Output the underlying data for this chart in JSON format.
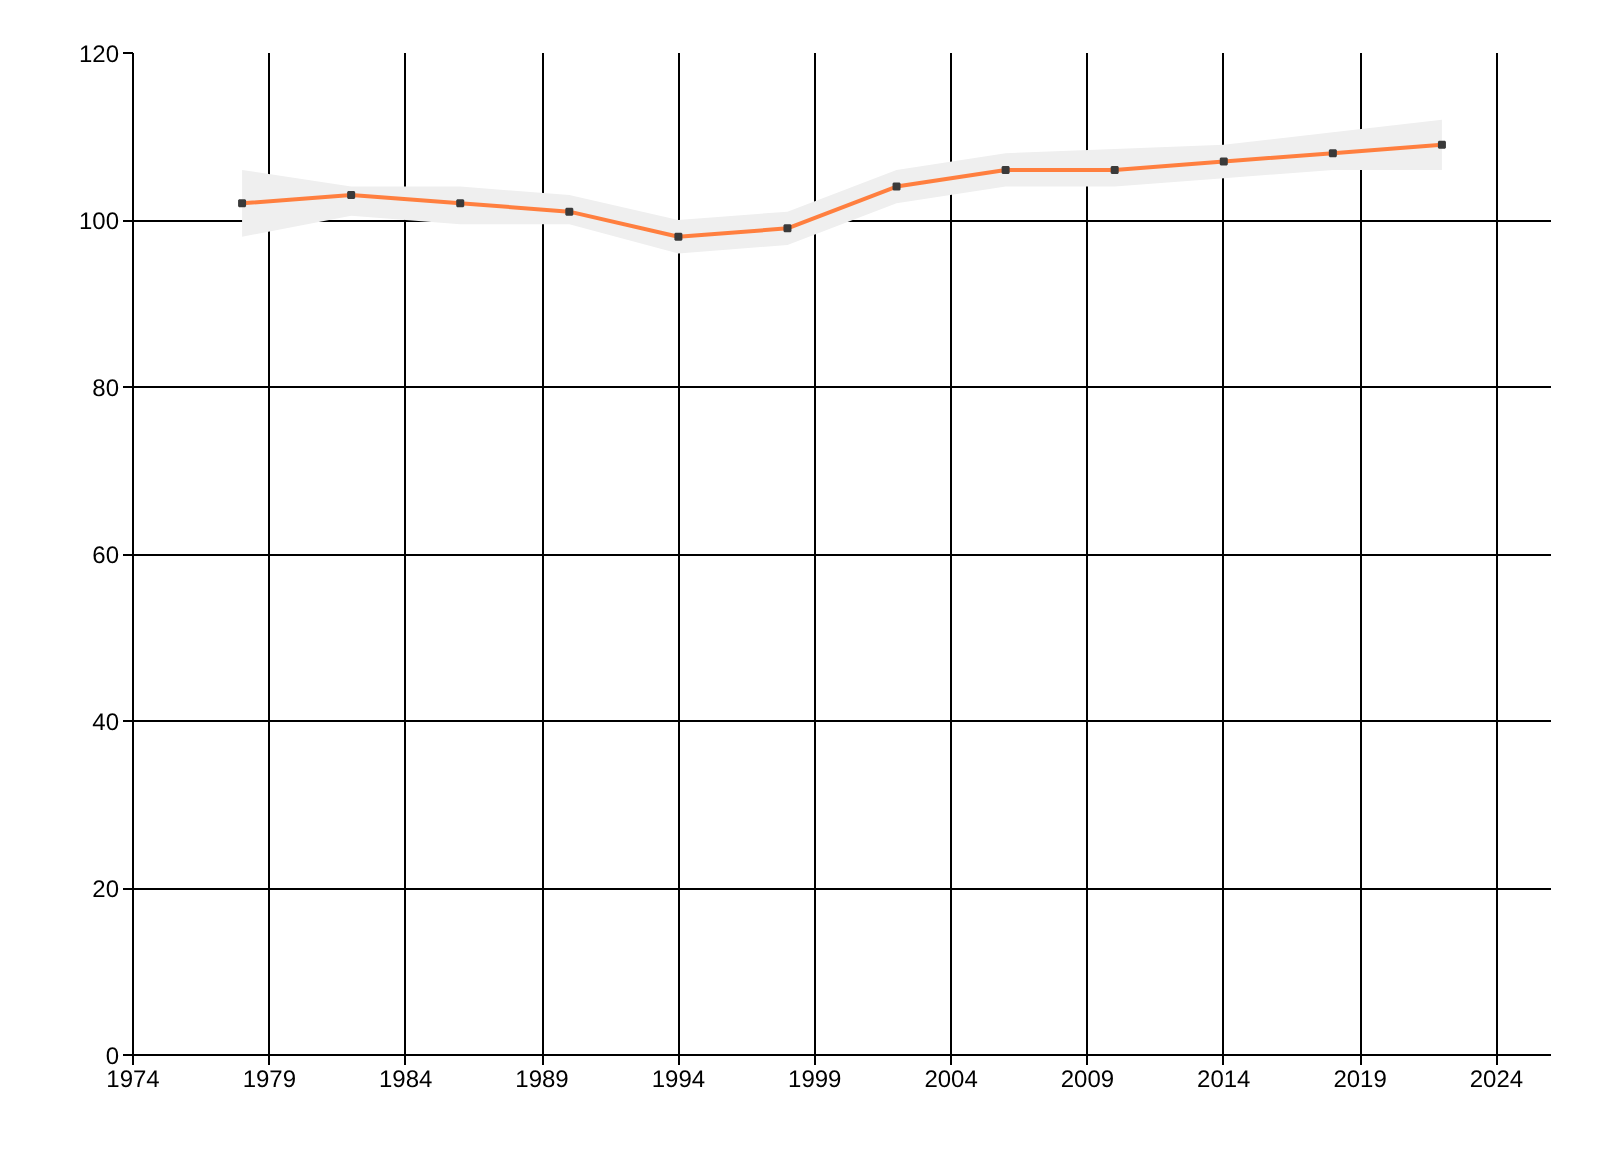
{
  "chart_data": {
    "type": "line",
    "x": [
      1978,
      1982,
      1986,
      1990,
      1994,
      1998,
      2002,
      2006,
      2010,
      2014,
      2018,
      2022
    ],
    "series": [
      {
        "color": "#ff7f3f",
        "values": [
          102,
          103,
          102,
          101,
          98,
          99,
          104,
          106,
          106,
          107,
          108,
          109
        ],
        "lower": [
          98,
          100.5,
          99.5,
          99.5,
          96,
          97,
          102,
          104,
          104,
          105,
          106,
          106
        ],
        "upper": [
          106,
          104,
          104,
          103,
          100,
          101,
          106,
          108,
          108.5,
          109,
          110.5,
          112
        ]
      }
    ],
    "xlim": [
      1974,
      2026
    ],
    "xticks": [
      1974,
      1979,
      1984,
      1989,
      1994,
      1999,
      2004,
      2009,
      2014,
      2019,
      2024
    ],
    "ylim": [
      0,
      120
    ],
    "yticks": [
      0,
      20,
      40,
      60,
      80,
      100,
      120
    ],
    "grid": true,
    "marker": "square",
    "line_style": "solid"
  }
}
